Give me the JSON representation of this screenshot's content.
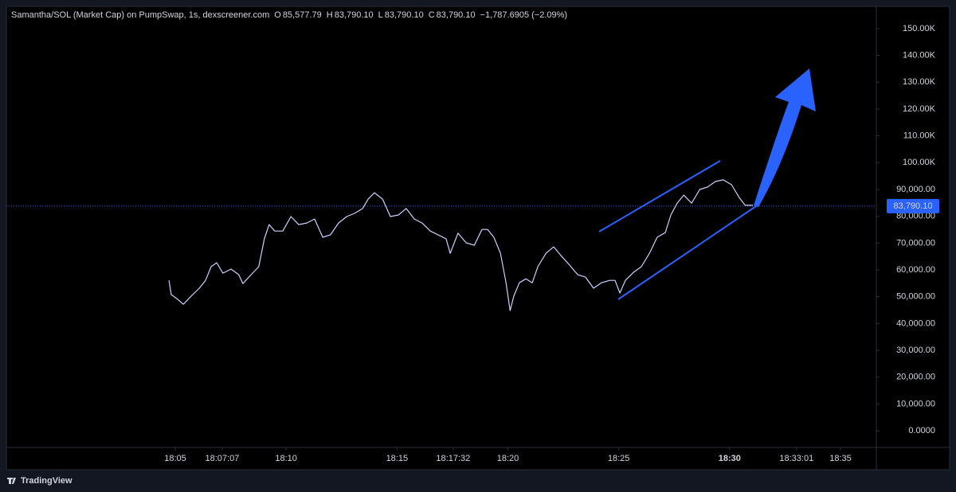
{
  "chart_data": {
    "type": "line",
    "title": "Samantha/SOL (Market Cap) on PumpSwap, 1s, dexscreener.com",
    "ohlc": [
      {
        "label": "O",
        "value": "85,577.79"
      },
      {
        "label": "H",
        "value": "83,790.10"
      },
      {
        "label": "L",
        "value": "83,790.10"
      },
      {
        "label": "C",
        "value": "83,790.10"
      }
    ],
    "change": "−1,787.6905 (−2.09%)",
    "brand": "TradingView",
    "x": [
      "18:04:43",
      "18:04:49",
      "18:05:04",
      "18:05:22",
      "18:05:43",
      "18:06:05",
      "18:06:22",
      "18:06:37",
      "18:06:52",
      "18:07:09",
      "18:07:31",
      "18:07:52",
      "18:08:03",
      "18:08:25",
      "18:08:46",
      "18:09:01",
      "18:09:14",
      "18:09:29",
      "18:09:51",
      "18:10:13",
      "18:10:34",
      "18:10:56",
      "18:11:17",
      "18:11:39",
      "18:12:00",
      "18:12:22",
      "18:12:44",
      "18:13:05",
      "18:13:27",
      "18:13:42",
      "18:13:59",
      "18:14:21",
      "18:14:42",
      "18:15:04",
      "18:15:25",
      "18:15:47",
      "18:16:08",
      "18:16:30",
      "18:16:51",
      "18:17:13",
      "18:17:24",
      "18:17:45",
      "18:18:07",
      "18:18:29",
      "18:18:50",
      "18:19:05",
      "18:19:22",
      "18:19:40",
      "18:19:55",
      "18:20:06",
      "18:20:16",
      "18:20:31",
      "18:20:49",
      "18:21:06",
      "18:21:21",
      "18:21:43",
      "18:22:04",
      "18:22:26",
      "18:22:47",
      "18:23:09",
      "18:23:30",
      "18:23:52",
      "18:24:13",
      "18:24:35",
      "18:24:50",
      "18:25:03",
      "18:25:18",
      "18:25:40",
      "18:26:01",
      "18:26:23",
      "18:26:44",
      "18:27:06",
      "18:27:21",
      "18:27:38",
      "18:27:56",
      "18:28:17",
      "18:28:39",
      "18:29:00",
      "18:29:22",
      "18:29:43",
      "18:30:05",
      "18:30:26",
      "18:30:42",
      "18:31:03"
    ],
    "series": [
      {
        "name": "Samantha/SOL",
        "color": "#c9d3ff",
        "values": [
          56100,
          50800,
          49300,
          47200,
          50200,
          53200,
          56100,
          61200,
          62700,
          58800,
          60300,
          58200,
          54900,
          58200,
          61200,
          71600,
          76900,
          74500,
          74500,
          79900,
          76900,
          77500,
          79000,
          72200,
          73100,
          77500,
          79900,
          81100,
          82900,
          86400,
          88800,
          86400,
          79900,
          80500,
          82900,
          79000,
          77500,
          74500,
          73100,
          71600,
          66200,
          73700,
          70100,
          69200,
          75100,
          75100,
          72200,
          66200,
          55200,
          44800,
          50200,
          55200,
          56700,
          55200,
          61200,
          66200,
          68600,
          65000,
          61800,
          58200,
          57300,
          53200,
          55200,
          56100,
          56100,
          51400,
          56100,
          59100,
          61200,
          66200,
          72200,
          73900,
          80500,
          84900,
          87900,
          84900,
          90000,
          90900,
          93000,
          93600,
          91800,
          87000,
          84100,
          84100
        ]
      }
    ],
    "last_price": {
      "value": 83790.1,
      "label": "83,790.10"
    },
    "xlim": [
      "17:57:23",
      "18:36:37"
    ],
    "xticks": [
      "18:05",
      "18:07:07",
      "18:10",
      "18:15",
      "18:17:32",
      "18:20",
      "18:25",
      "18:30",
      "18:33:01",
      "18:35"
    ],
    "ylim": [
      -6200,
      158300
    ],
    "yticks": [
      {
        "value": 0,
        "label": "0.0000"
      },
      {
        "value": 10000,
        "label": "10,000.00"
      },
      {
        "value": 20000,
        "label": "20,000.00"
      },
      {
        "value": 30000,
        "label": "30,000.00"
      },
      {
        "value": 40000,
        "label": "40,000.00"
      },
      {
        "value": 50000,
        "label": "50,000.00"
      },
      {
        "value": 60000,
        "label": "60,000.00"
      },
      {
        "value": 70000,
        "label": "70,000.00"
      },
      {
        "value": 80000,
        "label": "80,000.00"
      },
      {
        "value": 90000,
        "label": "90,000.00"
      },
      {
        "value": 100000,
        "label": "100.00K"
      },
      {
        "value": 110000,
        "label": "110.00K"
      },
      {
        "value": 120000,
        "label": "120.00K"
      },
      {
        "value": 130000,
        "label": "130.00K"
      },
      {
        "value": 140000,
        "label": "140.00K"
      },
      {
        "value": 150000,
        "label": "150.00K"
      }
    ]
  }
}
